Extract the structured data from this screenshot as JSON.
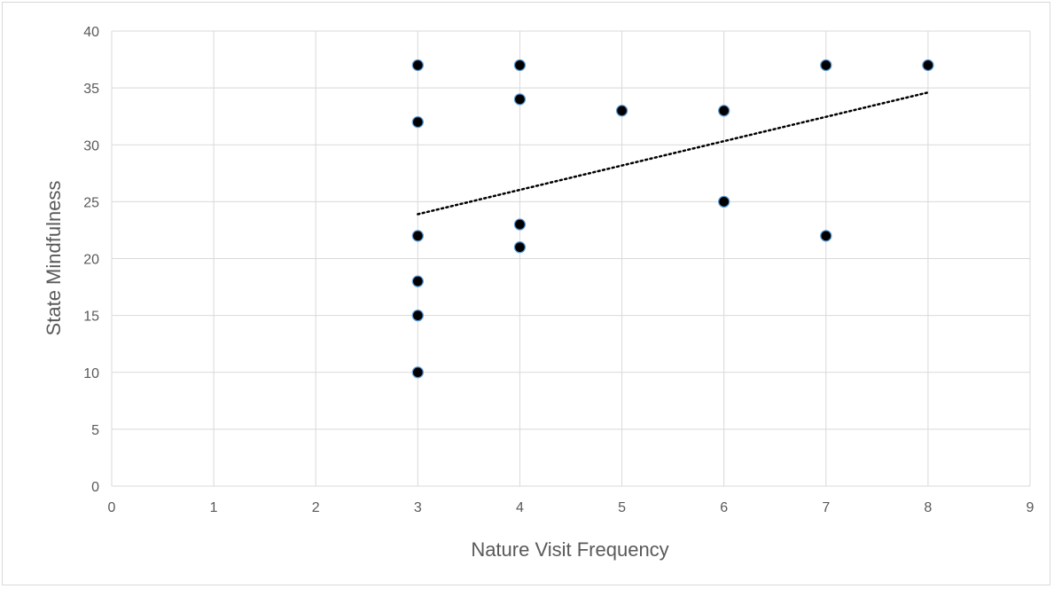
{
  "chart_data": {
    "type": "scatter",
    "title": "",
    "xlabel": "Nature Visit Frequency",
    "ylabel": "State Mindfulness",
    "xlim": [
      0,
      9
    ],
    "ylim": [
      0,
      40
    ],
    "x_ticks": [
      0,
      1,
      2,
      3,
      4,
      5,
      6,
      7,
      8,
      9
    ],
    "y_ticks": [
      0,
      5,
      10,
      15,
      20,
      25,
      30,
      35,
      40
    ],
    "grid": true,
    "legend": "none",
    "points": [
      {
        "x": 3,
        "y": 37
      },
      {
        "x": 3,
        "y": 32
      },
      {
        "x": 3,
        "y": 22
      },
      {
        "x": 3,
        "y": 18
      },
      {
        "x": 3,
        "y": 15
      },
      {
        "x": 3,
        "y": 10
      },
      {
        "x": 4,
        "y": 37
      },
      {
        "x": 4,
        "y": 34
      },
      {
        "x": 4,
        "y": 23
      },
      {
        "x": 4,
        "y": 21
      },
      {
        "x": 5,
        "y": 33
      },
      {
        "x": 6,
        "y": 33
      },
      {
        "x": 6,
        "y": 25
      },
      {
        "x": 7,
        "y": 37
      },
      {
        "x": 7,
        "y": 22
      },
      {
        "x": 8,
        "y": 37
      }
    ],
    "trendline": {
      "type": "linear",
      "style": "dotted",
      "from": {
        "x": 3,
        "y": 23.9
      },
      "to": {
        "x": 8,
        "y": 34.6
      }
    },
    "colors": {
      "marker_fill": "#000000",
      "marker_stroke": "#5b9bd5",
      "trendline": "#000000",
      "grid": "#d9d9d9",
      "text": "#595959"
    }
  }
}
